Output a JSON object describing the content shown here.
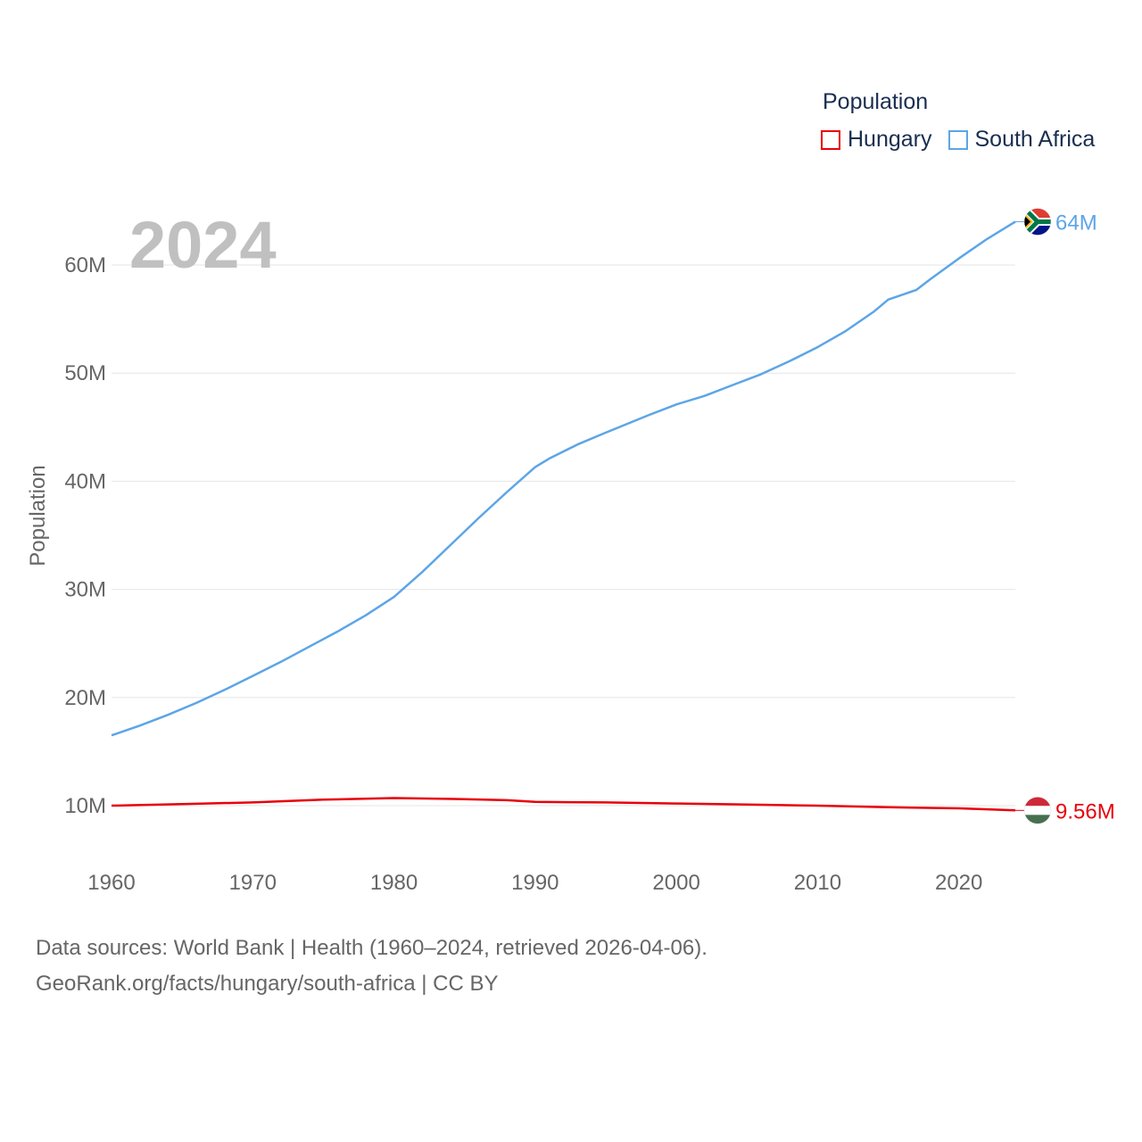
{
  "chart_data": {
    "type": "line",
    "title": "",
    "year_label": "2024",
    "xlabel": "",
    "ylabel": "Population",
    "xlim": [
      1960,
      2024
    ],
    "ylim": [
      5000000,
      70000000
    ],
    "x_ticks": [
      1960,
      1970,
      1980,
      1990,
      2000,
      2010,
      2020
    ],
    "y_ticks": [
      10000000,
      20000000,
      30000000,
      40000000,
      50000000,
      60000000
    ],
    "y_tick_labels": [
      "10M",
      "20M",
      "30M",
      "40M",
      "50M",
      "60M"
    ],
    "grid": true,
    "legend": {
      "title": "Population",
      "position": "top-right"
    },
    "series": [
      {
        "name": "Hungary",
        "color": "#e8000b",
        "end_label": "9.56M",
        "flag": "hungary-flag",
        "points": [
          [
            1960,
            10.0
          ],
          [
            1965,
            10.15
          ],
          [
            1970,
            10.3
          ],
          [
            1975,
            10.55
          ],
          [
            1980,
            10.7
          ],
          [
            1985,
            10.6
          ],
          [
            1988,
            10.5
          ],
          [
            1990,
            10.35
          ],
          [
            1995,
            10.3
          ],
          [
            2000,
            10.2
          ],
          [
            2005,
            10.1
          ],
          [
            2010,
            10.0
          ],
          [
            2015,
            9.85
          ],
          [
            2020,
            9.75
          ],
          [
            2024,
            9.56
          ]
        ]
      },
      {
        "name": "South Africa",
        "color": "#5da5e6",
        "end_label": "64M",
        "flag": "south-africa-flag",
        "points": [
          [
            1960,
            16.5
          ],
          [
            1962,
            17.4
          ],
          [
            1964,
            18.4
          ],
          [
            1966,
            19.5
          ],
          [
            1968,
            20.7
          ],
          [
            1970,
            22.0
          ],
          [
            1972,
            23.3
          ],
          [
            1974,
            24.7
          ],
          [
            1976,
            26.1
          ],
          [
            1978,
            27.6
          ],
          [
            1980,
            29.3
          ],
          [
            1982,
            31.6
          ],
          [
            1984,
            34.1
          ],
          [
            1986,
            36.6
          ],
          [
            1988,
            39.0
          ],
          [
            1990,
            41.3
          ],
          [
            1991,
            42.1
          ],
          [
            1993,
            43.4
          ],
          [
            1995,
            44.5
          ],
          [
            1998,
            46.1
          ],
          [
            2000,
            47.1
          ],
          [
            2002,
            47.9
          ],
          [
            2004,
            48.9
          ],
          [
            2006,
            49.9
          ],
          [
            2008,
            51.1
          ],
          [
            2010,
            52.4
          ],
          [
            2012,
            53.9
          ],
          [
            2014,
            55.7
          ],
          [
            2015,
            56.8
          ],
          [
            2017,
            57.7
          ],
          [
            2018,
            58.7
          ],
          [
            2020,
            60.6
          ],
          [
            2022,
            62.4
          ],
          [
            2024,
            64.0
          ]
        ]
      }
    ]
  },
  "sources": {
    "line1": "Data sources: World Bank | Health (1960–2024, retrieved 2026-04-06).",
    "line2": "GeoRank.org/facts/hungary/south-africa | CC BY"
  }
}
